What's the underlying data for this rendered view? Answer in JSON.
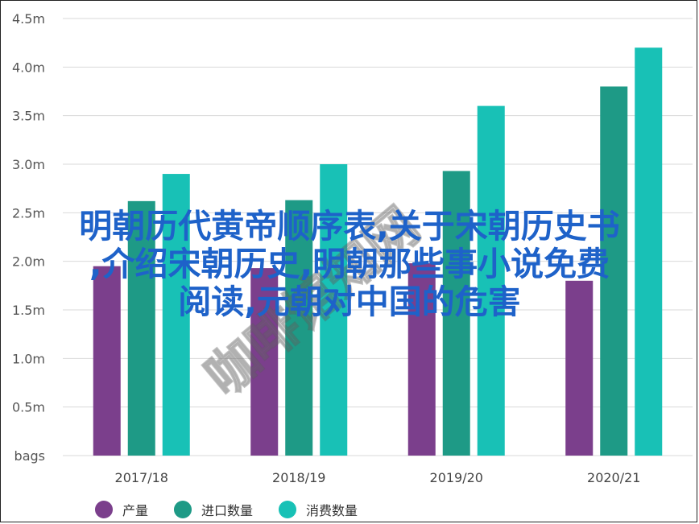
{
  "chart_data": {
    "type": "bar",
    "categories": [
      "2017/18",
      "2018/19",
      "2019/20",
      "2020/21"
    ],
    "series": [
      {
        "name": "产量",
        "values": [
          1.95,
          1.93,
          1.98,
          1.8
        ],
        "color": "#7b3f8c"
      },
      {
        "name": "进口数量",
        "values": [
          2.62,
          2.63,
          2.93,
          3.8
        ],
        "color": "#1e9a86"
      },
      {
        "name": "消费数量",
        "values": [
          2.9,
          3.0,
          3.6,
          4.2
        ],
        "color": "#18c1b6"
      }
    ],
    "ylim": [
      0,
      4.5
    ],
    "yticks": [
      {
        "value": 0,
        "label": "bags"
      },
      {
        "value": 0.5,
        "label": "0.5m"
      },
      {
        "value": 1.0,
        "label": "1.0m"
      },
      {
        "value": 1.5,
        "label": "1.5m"
      },
      {
        "value": 2.0,
        "label": "2.0m"
      },
      {
        "value": 2.5,
        "label": "2.5m"
      },
      {
        "value": 3.0,
        "label": "3.0m"
      },
      {
        "value": 3.5,
        "label": "3.5m"
      },
      {
        "value": 4.0,
        "label": "4.0m"
      },
      {
        "value": 4.5,
        "label": "4.5m"
      }
    ],
    "grid": true,
    "legend": "bottom"
  },
  "overlay": {
    "line1": "明朝历代黄帝顺序表,关于宋朝历史书",
    "line2": ",介绍宋朝历史,明朝那些事小说免费",
    "line3": "阅读,元朝对中国的危害"
  },
  "watermark": "咖啡馆知网",
  "colors": {
    "grid": "#d9d9d9",
    "overlay_text": "#1e62c9"
  }
}
